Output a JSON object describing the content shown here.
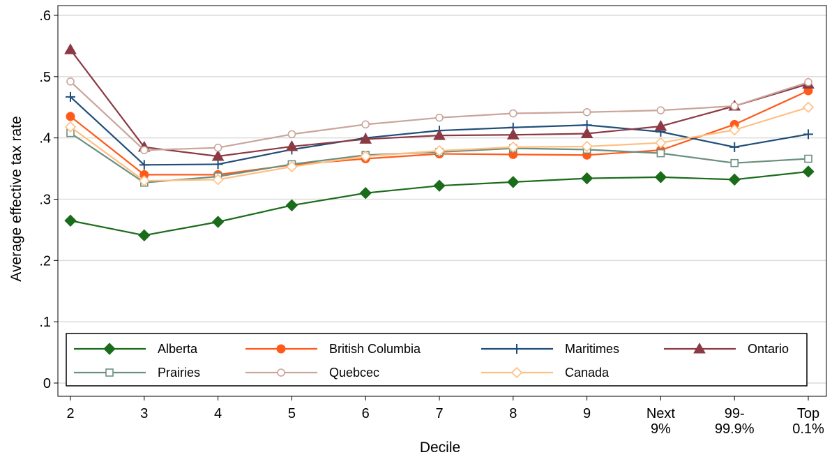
{
  "chart_data": {
    "type": "line",
    "xlabel": "Decile",
    "ylabel": "Average effective tax rate",
    "ylim": [
      0,
      0.6
    ],
    "yticks": [
      {
        "value": 0,
        "label": "0"
      },
      {
        "value": 0.1,
        "label": ".1"
      },
      {
        "value": 0.2,
        "label": ".2"
      },
      {
        "value": 0.3,
        "label": ".3"
      },
      {
        "value": 0.4,
        "label": ".4"
      },
      {
        "value": 0.5,
        "label": ".5"
      },
      {
        "value": 0.6,
        "label": ".6"
      }
    ],
    "categories": [
      [
        "2"
      ],
      [
        "3"
      ],
      [
        "4"
      ],
      [
        "5"
      ],
      [
        "6"
      ],
      [
        "7"
      ],
      [
        "8"
      ],
      [
        "9"
      ],
      [
        "Next",
        "9%"
      ],
      [
        "99-",
        "99.9%"
      ],
      [
        "Top",
        "0.1%"
      ]
    ],
    "grid": true,
    "legend_position": "bottom-inside",
    "series": [
      {
        "name": "Alberta",
        "color": "#1a6b1a",
        "marker": "diamond-filled",
        "values": [
          0.265,
          0.241,
          0.263,
          0.29,
          0.31,
          0.322,
          0.328,
          0.334,
          0.336,
          0.332,
          0.345
        ]
      },
      {
        "name": "British Columbia",
        "color": "#ff5a1a",
        "marker": "circle-filled",
        "values": [
          0.435,
          0.34,
          0.34,
          0.356,
          0.366,
          0.374,
          0.373,
          0.372,
          0.38,
          0.422,
          0.477
        ]
      },
      {
        "name": "Maritimes",
        "color": "#1f4e79",
        "marker": "plus",
        "values": [
          0.467,
          0.356,
          0.357,
          0.381,
          0.4,
          0.412,
          0.417,
          0.421,
          0.41,
          0.385,
          0.406
        ]
      },
      {
        "name": "Ontario",
        "color": "#8b3a44",
        "marker": "triangle-filled",
        "values": [
          0.544,
          0.385,
          0.37,
          0.386,
          0.398,
          0.404,
          0.405,
          0.407,
          0.419,
          0.452,
          0.488
        ]
      },
      {
        "name": "Prairies",
        "color": "#6b8f80",
        "marker": "square-hollow",
        "values": [
          0.408,
          0.327,
          0.337,
          0.357,
          0.372,
          0.377,
          0.383,
          0.381,
          0.375,
          0.359,
          0.366
        ]
      },
      {
        "name": "Quebcec",
        "color": "#c9a59a",
        "marker": "circle-hollow",
        "values": [
          0.492,
          0.38,
          0.384,
          0.406,
          0.422,
          0.433,
          0.44,
          0.442,
          0.445,
          0.452,
          0.491
        ]
      },
      {
        "name": "Canada",
        "color": "#ffbf80",
        "marker": "diamond-hollow",
        "values": [
          0.418,
          0.33,
          0.332,
          0.353,
          0.37,
          0.379,
          0.385,
          0.386,
          0.392,
          0.413,
          0.45
        ]
      }
    ]
  }
}
